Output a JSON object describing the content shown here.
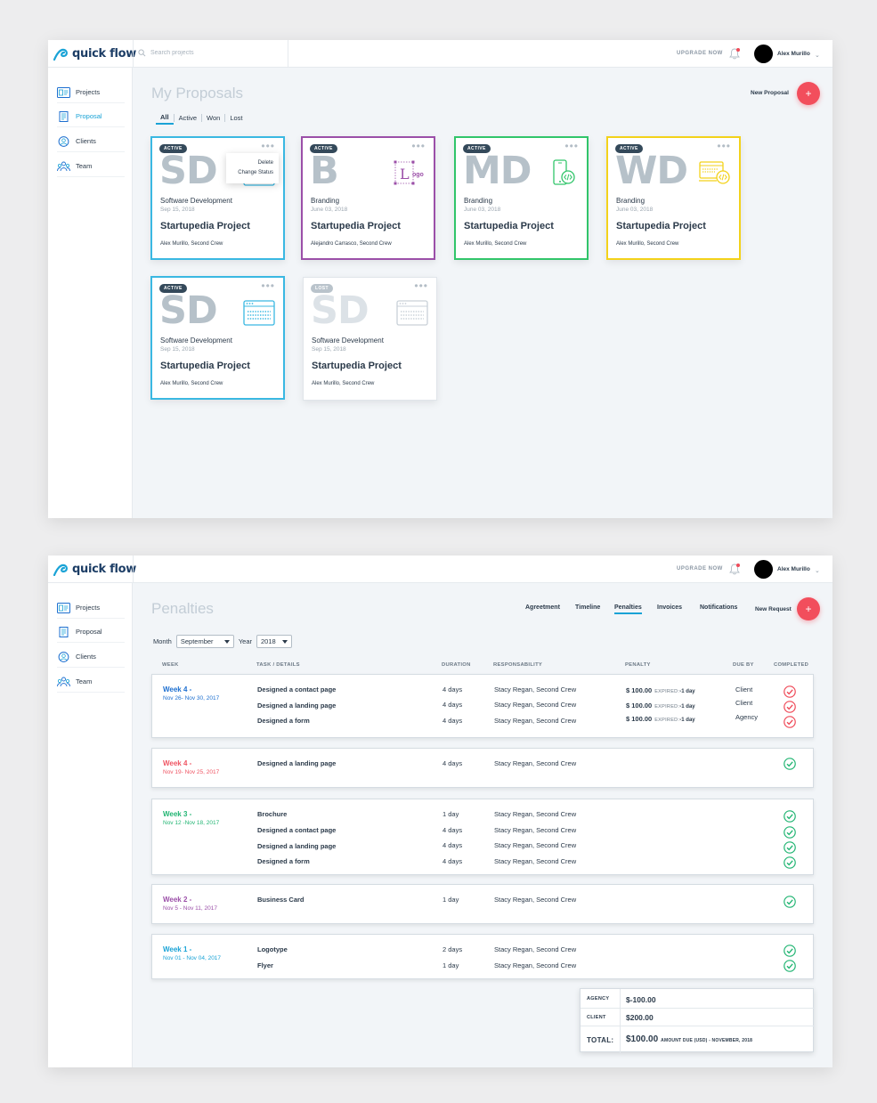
{
  "brand": {
    "name": "quick flow",
    "color": "#1d3e66",
    "accent": "#1aa3d6",
    "danger": "#f24e5c"
  },
  "header": {
    "search_placeholder": "Search projects",
    "upgrade_label": "UPGRADE NOW",
    "user_name": "Alex Murillo"
  },
  "sidebar": {
    "items": [
      {
        "label": "Projects",
        "icon": "projects-icon"
      },
      {
        "label": "Proposal",
        "icon": "proposal-icon"
      },
      {
        "label": "Clients",
        "icon": "client-icon"
      },
      {
        "label": "Team",
        "icon": "team-icon"
      }
    ]
  },
  "proposals": {
    "title": "My Proposals",
    "new_label": "New Proposal",
    "fab_label": "+",
    "filters": [
      "All",
      "Active",
      "Won",
      "Lost"
    ],
    "card_menu": [
      "Delete",
      "Change Status"
    ],
    "more_label": "•••",
    "cards": [
      {
        "badge": "ACTIVE",
        "initials": "SD",
        "category": "Software Development",
        "date": "Sep 15, 2018",
        "project": "Startupedia Project",
        "members": "Alex Murillo, Second Crew",
        "color": "#3ab8e2",
        "icon": "browser-icon"
      },
      {
        "badge": "ACTIVE",
        "initials": "B",
        "category": "Branding",
        "date": "June 03, 2018",
        "project": "Startupedia Project",
        "members": "Alejandro Carrasco, Second Crew",
        "color": "#9b4fa8",
        "icon": "logo-design-icon",
        "icon_text_l": "L",
        "icon_text_ogo": "ogo"
      },
      {
        "badge": "ACTIVE",
        "initials": "MD",
        "category": "Branding",
        "date": "June 03, 2018",
        "project": "Startupedia Project",
        "members": "Alex Murillo, Second Crew",
        "color": "#31c56a",
        "icon": "mobile-dev-icon"
      },
      {
        "badge": "ACTIVE",
        "initials": "WD",
        "category": "Branding",
        "date": "June 03, 2018",
        "project": "Startupedia Project",
        "members": "Alex Murillo, Second Crew",
        "color": "#f3d21a",
        "icon": "web-dev-icon"
      },
      {
        "badge": "ACTIVE",
        "initials": "SD",
        "category": "Software Development",
        "date": "Sep 15, 2018",
        "project": "Startupedia Project",
        "members": "Alex Murillo, Second Crew",
        "color": "#3ab8e2",
        "icon": "browser-icon"
      },
      {
        "badge": "LOST",
        "initials": "SD",
        "category": "Software Development",
        "date": "Sep 15, 2018",
        "project": "Startupedia Project",
        "members": "Alex Murillo, Second Crew",
        "color": "#c9d1d8",
        "icon": "browser-icon"
      }
    ]
  },
  "penalties": {
    "title": "Penalties",
    "tabs": [
      "Agreetment",
      "Timeline",
      "Penalties",
      "Invoices",
      "Notifications"
    ],
    "active_tab": "Penalties",
    "new_label": "New Request",
    "fab_label": "+",
    "month_label": "Month",
    "month_value": "September",
    "year_label": "Year",
    "year_value": "2018",
    "columns": [
      "WEEK",
      "TASK / DETAILS",
      "DURATION",
      "RESPONSABILITY",
      "PENALTY",
      "DUE BY",
      "COMPLETED"
    ],
    "groups": [
      {
        "week": "Week 4 -",
        "dates": "Nov 26- Nov 30, 2017",
        "color": "#1d6fd0",
        "rows": [
          {
            "task": "Designed a contact page",
            "duration": "4 days",
            "resp": "Stacy Regan, Second Crew",
            "penalty": "$ 100.00",
            "expired": "EXPIRED:",
            "delay": "-1 day",
            "due": "Client",
            "status": "failed"
          },
          {
            "task": "Designed a landing page",
            "duration": "4 days",
            "resp": "Stacy Regan, Second Crew",
            "penalty": "$ 100.00",
            "expired": "EXPIRED:",
            "delay": "-1 day",
            "due": "Client",
            "status": "failed"
          },
          {
            "task": "Designed a form",
            "duration": "4 days",
            "resp": "Stacy Regan, Second Crew",
            "penalty": "$ 100.00",
            "expired": "EXPIRED:",
            "delay": "-1 day",
            "due": "Agency",
            "status": "failed"
          }
        ]
      },
      {
        "week": "Week 4 -",
        "dates": "Nov 19- Nov 25, 2017",
        "color": "#ef5563",
        "rows": [
          {
            "task": "Designed a landing page",
            "duration": "4 days",
            "resp": "Stacy Regan, Second Crew",
            "status": "done"
          }
        ]
      },
      {
        "week": "Week 3 -",
        "dates": "Nov 12 -Nov 18, 2017",
        "color": "#22b573",
        "rows": [
          {
            "task": "Brochure",
            "duration": "1 day",
            "resp": "Stacy Regan, Second Crew",
            "status": "done"
          },
          {
            "task": "Designed a contact page",
            "duration": "4 days",
            "resp": "Stacy Regan, Second Crew",
            "status": "done"
          },
          {
            "task": "Designed a landing page",
            "duration": "4 days",
            "resp": "Stacy Regan, Second Crew",
            "status": "done"
          },
          {
            "task": "Designed a form",
            "duration": "4 days",
            "resp": "Stacy Regan, Second Crew",
            "status": "done"
          }
        ]
      },
      {
        "week": "Week 2 -",
        "dates": "Nov 5 - Nov 11, 2017",
        "color": "#9b4fa8",
        "rows": [
          {
            "task": "Business Card",
            "duration": "1 day",
            "resp": "Stacy Regan, Second Crew",
            "status": "done"
          }
        ]
      },
      {
        "week": "Week 1 -",
        "dates": "Nov 01 - Nov 04, 2017",
        "color": "#1aa3d6",
        "rows": [
          {
            "task": "Logotype",
            "duration": "2 days",
            "resp": "Stacy Regan, Second Crew",
            "status": "done"
          },
          {
            "task": "Flyer",
            "duration": "1 day",
            "resp": "Stacy Regan, Second Crew",
            "status": "done"
          }
        ]
      }
    ],
    "totals": {
      "agency_label": "AGENCY",
      "agency_value": "$-100.00",
      "client_label": "CLIENT",
      "client_value": "$200.00",
      "total_label": "TOTAL:",
      "total_value": "$100.00",
      "total_note": "AMOUNT DUE (USD) - NOVEMBER, 2018"
    }
  }
}
